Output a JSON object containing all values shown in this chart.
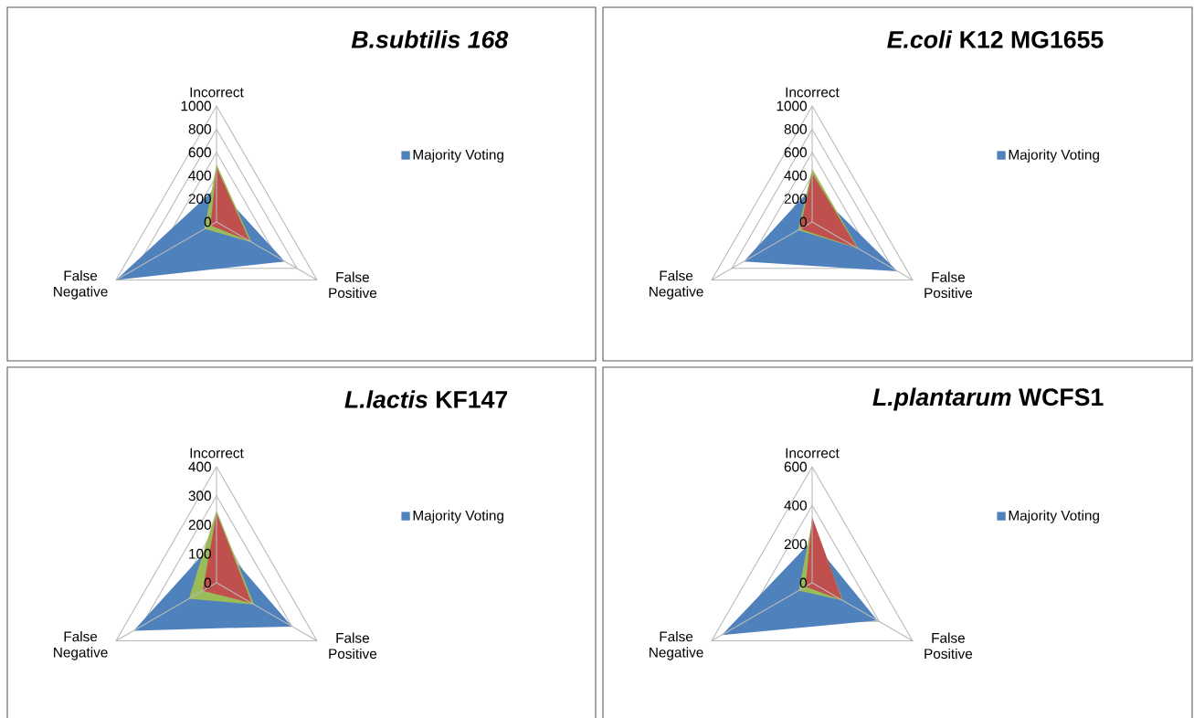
{
  "chart_data": [
    {
      "type": "radar",
      "title": "*B.subtilis 168*",
      "categories": [
        "Incorrect",
        "False Positive",
        "False Negative"
      ],
      "ylim": [
        0,
        1000
      ],
      "yticks": [
        0,
        200,
        400,
        600,
        800,
        1000
      ],
      "grid": true,
      "legend": "right",
      "series": [
        {
          "name": "Majority Voting",
          "color": "#4f81bd",
          "values": [
            300,
            680,
            1000
          ]
        },
        {
          "color": "#9bbb59",
          "values": [
            500,
            350,
            120
          ]
        },
        {
          "color": "#c0504d",
          "values": [
            470,
            330,
            60
          ]
        }
      ]
    },
    {
      "type": "radar",
      "title": "*E.coli* K12 MG1655",
      "categories": [
        "Incorrect",
        "False Positive",
        "False Negative"
      ],
      "ylim": [
        0,
        1000
      ],
      "yticks": [
        0,
        200,
        400,
        600,
        800,
        1000
      ],
      "grid": true,
      "legend": "right",
      "series": [
        {
          "name": "Majority Voting",
          "color": "#4f81bd",
          "values": [
            300,
            850,
            680
          ]
        },
        {
          "color": "#9bbb59",
          "values": [
            460,
            460,
            140
          ]
        },
        {
          "color": "#c0504d",
          "values": [
            420,
            450,
            120
          ]
        }
      ]
    },
    {
      "type": "radar",
      "title": "*L.lactis* KF147",
      "categories": [
        "Incorrect",
        "False Positive",
        "False Negative"
      ],
      "ylim": [
        0,
        400
      ],
      "yticks": [
        0,
        100,
        200,
        300,
        400
      ],
      "grid": true,
      "legend": "right",
      "series": [
        {
          "name": "Majority Voting",
          "color": "#4f81bd",
          "values": [
            150,
            300,
            330
          ]
        },
        {
          "color": "#9bbb59",
          "values": [
            250,
            150,
            110
          ]
        },
        {
          "color": "#c0504d",
          "values": [
            240,
            140,
            55
          ]
        }
      ]
    },
    {
      "type": "radar",
      "title": "*L.plantarum* WCFS1",
      "categories": [
        "Incorrect",
        "False Positive",
        "False Negative"
      ],
      "ylim": [
        0,
        600
      ],
      "yticks": [
        0,
        200,
        400,
        600
      ],
      "grid": true,
      "legend": "right",
      "series": [
        {
          "name": "Majority Voting",
          "color": "#4f81bd",
          "values": [
            220,
            390,
            540
          ]
        },
        {
          "color": "#9bbb59",
          "values": [
            320,
            185,
            80
          ]
        },
        {
          "color": "#c0504d",
          "values": [
            340,
            180,
            40
          ]
        }
      ]
    }
  ]
}
